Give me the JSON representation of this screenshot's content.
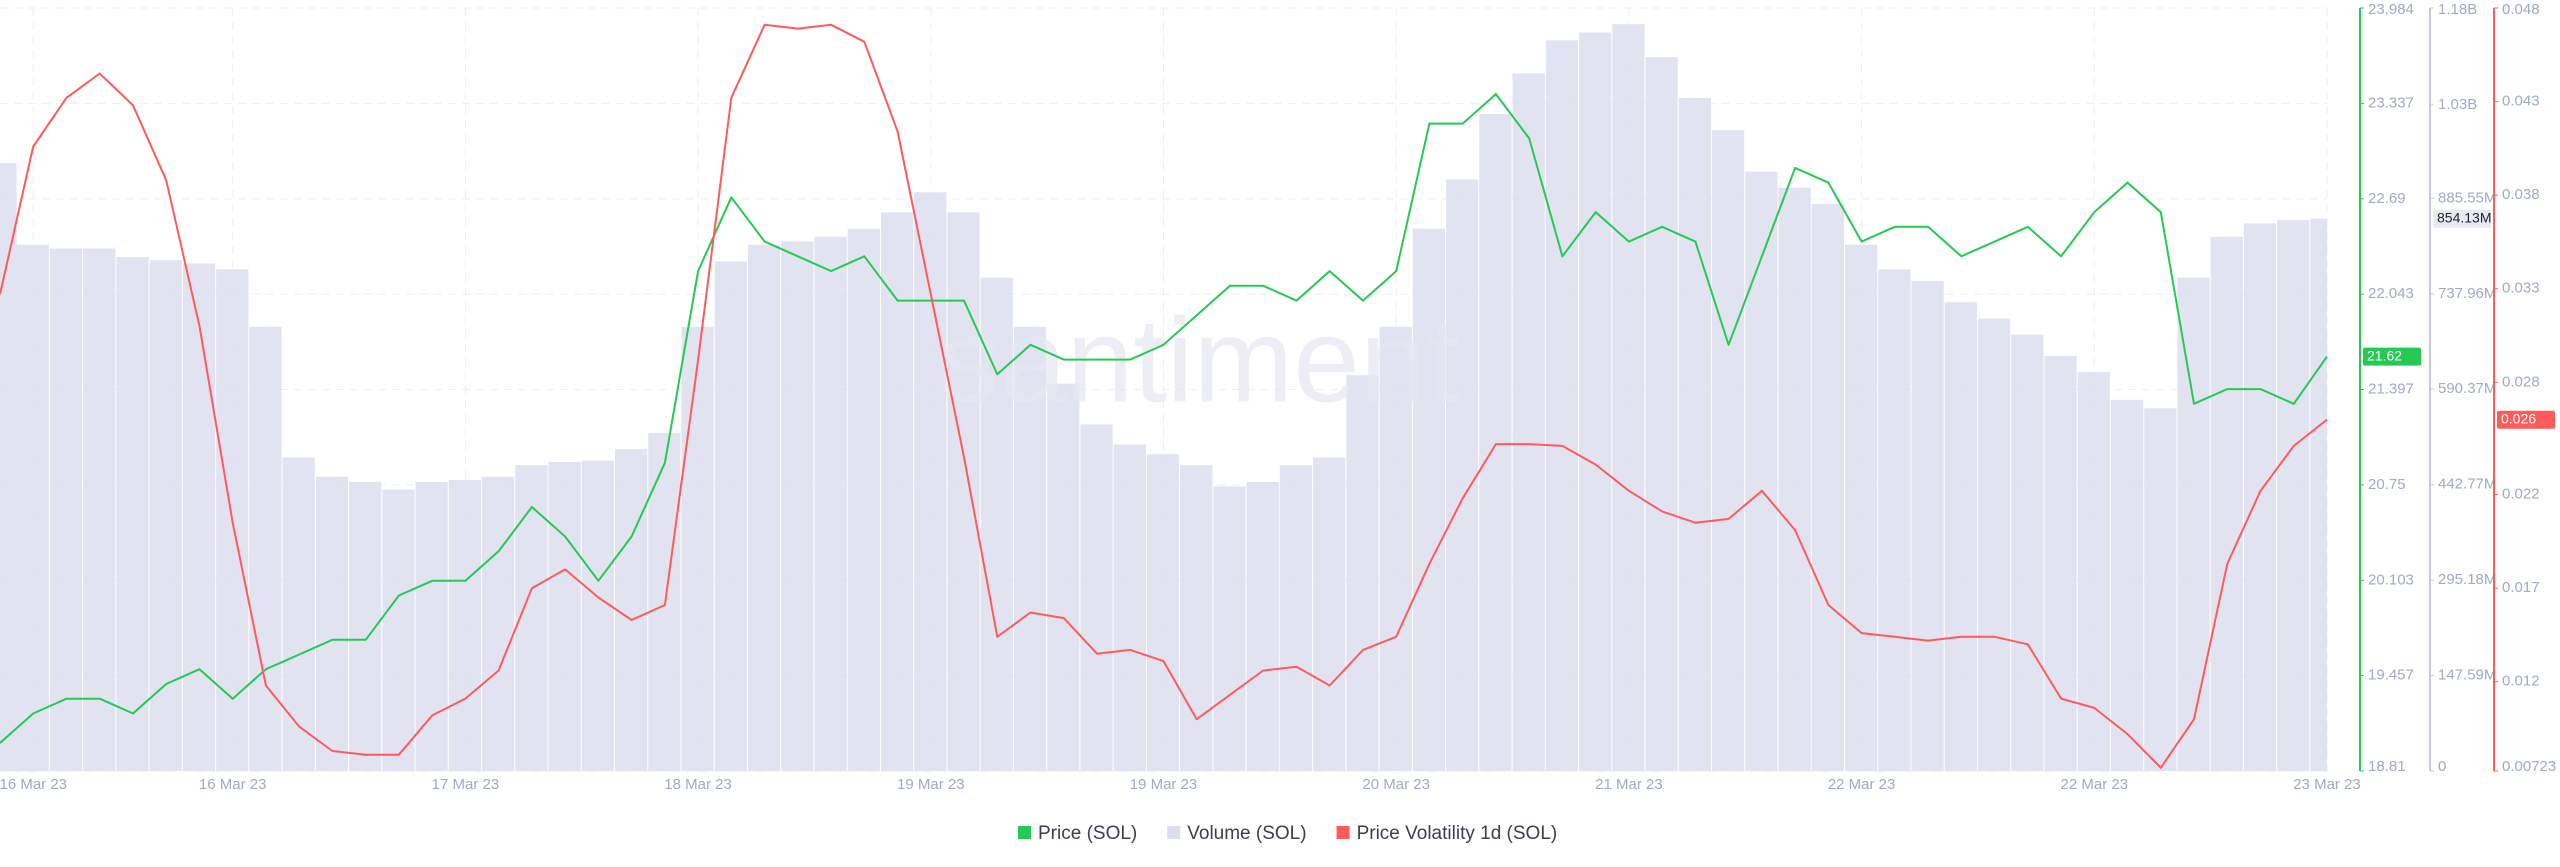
{
  "chart_data": {
    "type": "line",
    "watermark": "santiment",
    "grid": true,
    "legend": "bottom",
    "categories": [
      null,
      "16 Mar 23",
      null,
      null,
      null,
      null,
      null,
      "16 Mar 23",
      null,
      null,
      null,
      null,
      null,
      null,
      "17 Mar 23",
      null,
      null,
      null,
      null,
      null,
      null,
      "18 Mar 23",
      null,
      null,
      null,
      null,
      null,
      null,
      "19 Mar 23",
      null,
      null,
      null,
      null,
      null,
      null,
      "19 Mar 23",
      null,
      null,
      null,
      null,
      null,
      null,
      "20 Mar 23",
      null,
      null,
      null,
      null,
      null,
      null,
      "21 Mar 23",
      null,
      null,
      null,
      null,
      null,
      null,
      "22 Mar 23",
      null,
      null,
      null,
      null,
      null,
      null,
      "22 Mar 23",
      null,
      null,
      null,
      null,
      null,
      null,
      "23 Mar 23"
    ],
    "ylim": [
      18.81,
      23.984
    ],
    "yticks": [
      18.81,
      19.457,
      20.103,
      20.75,
      21.397,
      22.043,
      22.69,
      23.337,
      23.984
    ],
    "y2lim": [
      0,
      1180000000
    ],
    "y2ticks": [
      0,
      {
        "value": 147590000,
        "label": "147.59M"
      },
      {
        "value": 295180000,
        "label": "295.18M"
      },
      {
        "value": 442770000,
        "label": "442.77M"
      },
      {
        "value": 590370000,
        "label": "590.37M"
      },
      {
        "value": 737960000,
        "label": "737.96M"
      },
      {
        "value": 885550000,
        "label": "885.55M"
      },
      {
        "value": 1030000000,
        "label": "1.03B"
      },
      {
        "value": 1180000000,
        "label": "1.18B"
      }
    ],
    "y3lim": [
      0.00723,
      0.048
    ],
    "y3ticks": [
      0.00723,
      0.012,
      0.017,
      0.022,
      0.028,
      0.033,
      0.038,
      0.043,
      0.048
    ],
    "series": [
      {
        "name": "Volume (SOL)",
        "type": "bar",
        "axis": "y2",
        "color": "#dcdeee",
        "current_label": "854.13M",
        "values": [
          940000000,
          814000000,
          808000000,
          808000000,
          795000000,
          790000000,
          785000000,
          776000000,
          687000000,
          485000000,
          455000000,
          447000000,
          435000000,
          447000000,
          450000000,
          455000000,
          473000000,
          478000000,
          480000000,
          498000000,
          523000000,
          687000000,
          788000000,
          814000000,
          819000000,
          826000000,
          839000000,
          864000000,
          895000000,
          864000000,
          763000000,
          687000000,
          599000000,
          536000000,
          505000000,
          490000000,
          473000000,
          440000000,
          447000000,
          473000000,
          485000000,
          612000000,
          687000000,
          839000000,
          915000000,
          1016000000,
          1079000000,
          1130000000,
          1142000000,
          1155000000,
          1104000000,
          1041000000,
          991000000,
          927000000,
          902000000,
          877000000,
          814000000,
          776000000,
          758000000,
          725000000,
          700000000,
          675000000,
          642000000,
          617000000,
          574000000,
          561000000,
          763000000,
          826000000,
          847000000,
          852000000,
          854130000
        ]
      },
      {
        "name": "Price (SOL)",
        "type": "line",
        "axis": "y",
        "color": "#26c953",
        "current_label": "21.62",
        "values": [
          19.0,
          19.2,
          19.3,
          19.3,
          19.2,
          19.4,
          19.5,
          19.3,
          19.5,
          19.6,
          19.7,
          19.7,
          20.0,
          20.1,
          20.1,
          20.3,
          20.6,
          20.4,
          20.1,
          20.4,
          20.9,
          22.2,
          22.7,
          22.4,
          22.3,
          22.2,
          22.3,
          22.0,
          22.0,
          22.0,
          21.5,
          21.7,
          21.6,
          21.6,
          21.6,
          21.7,
          21.9,
          22.1,
          22.1,
          22.0,
          22.2,
          22.0,
          22.2,
          23.2,
          23.2,
          23.4,
          23.1,
          22.3,
          22.6,
          22.4,
          22.5,
          22.4,
          21.7,
          22.3,
          22.9,
          22.8,
          22.4,
          22.5,
          22.5,
          22.3,
          22.4,
          22.5,
          22.3,
          22.6,
          22.8,
          22.6,
          21.3,
          21.4,
          21.4,
          21.3,
          21.62
        ]
      },
      {
        "name": "Price Volatility 1d (SOL)",
        "type": "line",
        "axis": "y3",
        "color": "#ff5b5b",
        "current_label": "0.026",
        "values": [
          0.0327,
          0.0406,
          0.0432,
          0.0445,
          0.0428,
          0.0388,
          0.031,
          0.0205,
          0.0118,
          0.0096,
          0.0083,
          0.0081,
          0.0081,
          0.0102,
          0.0111,
          0.0126,
          0.017,
          0.018,
          0.0165,
          0.0153,
          0.0161,
          0.0292,
          0.0432,
          0.0471,
          0.0469,
          0.0471,
          0.0462,
          0.0414,
          0.0327,
          0.024,
          0.0144,
          0.0157,
          0.0154,
          0.0135,
          0.0137,
          0.0131,
          0.01,
          0.0113,
          0.0126,
          0.0128,
          0.0118,
          0.0137,
          0.0144,
          0.0183,
          0.0218,
          0.0247,
          0.0247,
          0.0246,
          0.0236,
          0.0222,
          0.0211,
          0.0205,
          0.0207,
          0.0222,
          0.0201,
          0.0161,
          0.0146,
          0.0144,
          0.0142,
          0.0144,
          0.0144,
          0.014,
          0.0111,
          0.0106,
          0.0092,
          0.0074,
          0.01,
          0.0183,
          0.0222,
          0.0246,
          0.026
        ]
      }
    ]
  }
}
